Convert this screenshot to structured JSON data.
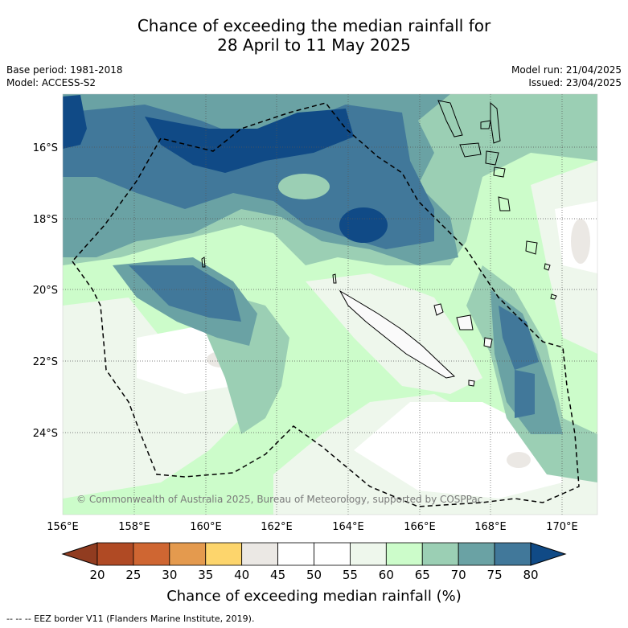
{
  "title_line1": "Chance of exceeding the median rainfall for",
  "title_line2": "28 April to 11 May 2025",
  "base_period": "Base period: 1981-2018",
  "model": "Model: ACCESS-S2",
  "model_run": "Model run: 21/04/2025",
  "issued": "Issued: 23/04/2025",
  "lat_labels": [
    "16°S",
    "18°S",
    "20°S",
    "22°S",
    "24°S"
  ],
  "lon_labels": [
    "156°E",
    "158°E",
    "160°E",
    "162°E",
    "164°E",
    "166°E",
    "168°E",
    "170°E"
  ],
  "copyright": "© Commonwealth of Australia 2025, Bureau of Meteorology, supported by COSPPac",
  "colorbar": {
    "label": "Chance of exceeding median rainfall (%)",
    "ticks": [
      "20",
      "25",
      "30",
      "35",
      "40",
      "45",
      "50",
      "55",
      "60",
      "65",
      "70",
      "75",
      "80"
    ],
    "colors": [
      "#b04a24",
      "#cf6632",
      "#e49a4e",
      "#fdd56c",
      "#ebe8e4",
      "#ffffff",
      "#ffffff",
      "#eef7ec",
      "#ccfcca",
      "#9bcfb4",
      "#6aa2a4",
      "#41789a"
    ],
    "low_extend_color": "#913c20",
    "high_extend_color": "#104a86"
  },
  "eez_note": "--  --  -- EEZ border V11 (Flanders Marine Institute, 2019)."
}
